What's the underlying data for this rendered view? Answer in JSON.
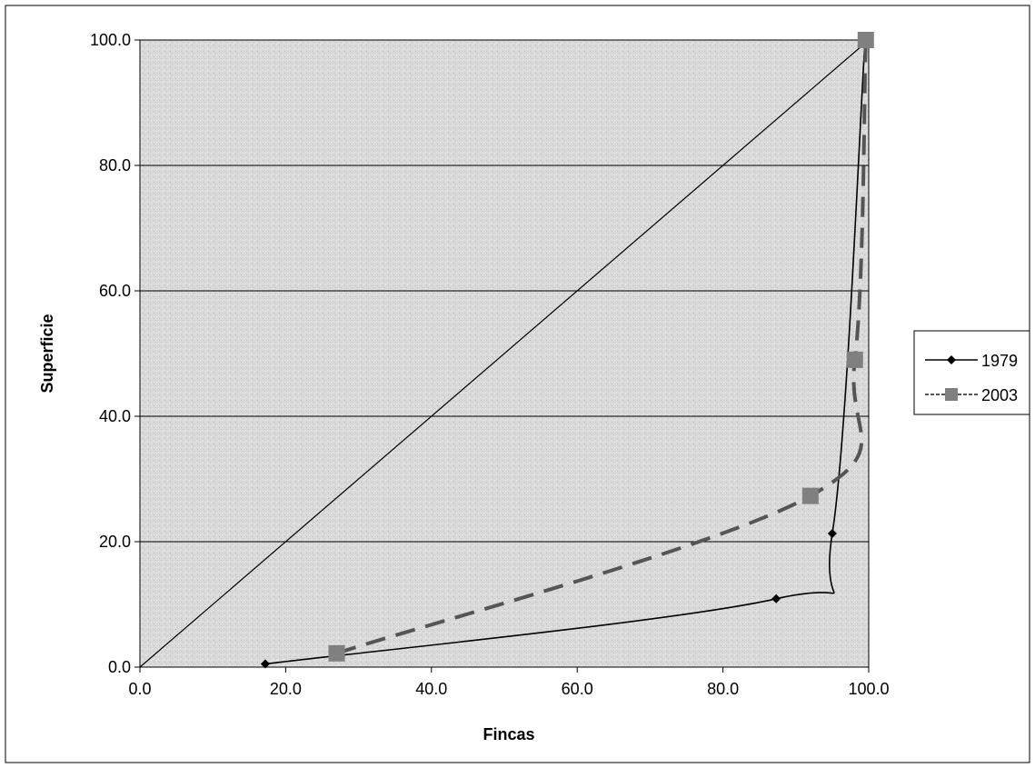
{
  "chart_data": {
    "type": "line",
    "title": "",
    "xlabel": "Fincas",
    "ylabel": "Superficie",
    "xlim": [
      0,
      100
    ],
    "ylim": [
      0,
      100
    ],
    "x_ticks": [
      "0.0",
      "20.0",
      "40.0",
      "60.0",
      "80.0",
      "100.0"
    ],
    "y_ticks": [
      "0.0",
      "20.0",
      "40.0",
      "60.0",
      "80.0",
      "100.0"
    ],
    "grid": "horizontal",
    "legend_position": "right",
    "reference_line": {
      "x": [
        0,
        100
      ],
      "y": [
        0,
        100
      ]
    },
    "series": [
      {
        "name": "1979",
        "marker": "diamond",
        "line_style": "solid",
        "color": "#000000",
        "x": [
          17.2,
          87.3,
          95.0,
          99.5
        ],
        "y": [
          0.5,
          10.9,
          21.3,
          100.0
        ]
      },
      {
        "name": "2003",
        "marker": "square",
        "line_style": "dashed",
        "color": "#555555",
        "marker_color": "#808080",
        "x": [
          27.0,
          92.0,
          98.1,
          99.6
        ],
        "y": [
          2.2,
          27.3,
          49.0,
          100.0
        ]
      }
    ]
  },
  "colors": {
    "plot_background": "#dcdcdc",
    "grid": "#000000",
    "frame": "#000000"
  }
}
